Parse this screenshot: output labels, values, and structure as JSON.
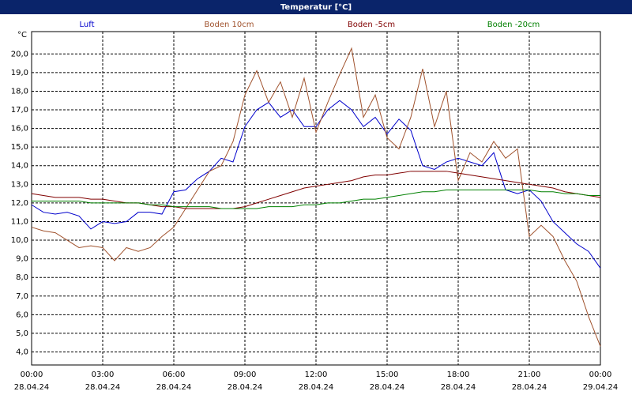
{
  "chart_data": {
    "type": "line",
    "title": "Temperatur [°C]",
    "y_label": "°C",
    "x": [
      0,
      0.5,
      1,
      1.5,
      2,
      2.5,
      3,
      3.5,
      4,
      4.5,
      5,
      5.5,
      6,
      6.5,
      7,
      7.5,
      8,
      8.5,
      9,
      9.5,
      10,
      10.5,
      11,
      11.5,
      12,
      12.5,
      13,
      13.5,
      14,
      14.5,
      15,
      15.5,
      16,
      16.5,
      17,
      17.5,
      18,
      18.5,
      19,
      19.5,
      20,
      20.5,
      21,
      21.5,
      22,
      22.5,
      23,
      23.5,
      24
    ],
    "series": [
      {
        "name": "Luft",
        "color": "#0000cc",
        "values": [
          11.9,
          11.5,
          11.4,
          11.5,
          11.3,
          10.6,
          11.0,
          10.9,
          11.0,
          11.5,
          11.5,
          11.4,
          12.6,
          12.7,
          13.3,
          13.7,
          14.4,
          14.2,
          16.1,
          17.0,
          17.4,
          16.6,
          17.0,
          16.1,
          16.1,
          17.0,
          17.5,
          17.0,
          16.1,
          16.6,
          15.7,
          16.5,
          15.9,
          14.0,
          13.8,
          14.2,
          14.4,
          14.2,
          14.0,
          14.7,
          12.7,
          12.5,
          12.7,
          12.1,
          11.0,
          10.4,
          9.8,
          9.4,
          8.5
        ]
      },
      {
        "name": "Boden 10cm",
        "color": "#a0522d",
        "values": [
          10.7,
          10.5,
          10.4,
          10.0,
          9.6,
          9.7,
          9.6,
          8.9,
          9.6,
          9.4,
          9.6,
          10.2,
          10.7,
          11.7,
          12.7,
          13.7,
          14.0,
          15.3,
          17.8,
          19.1,
          17.4,
          18.5,
          16.6,
          18.7,
          15.8,
          17.4,
          18.9,
          20.3,
          16.6,
          17.8,
          15.5,
          14.9,
          16.6,
          19.2,
          16.1,
          18.0,
          13.2,
          14.7,
          14.2,
          15.3,
          14.4,
          14.9,
          10.2,
          10.8,
          10.2,
          8.9,
          7.8,
          5.9,
          4.3
        ]
      },
      {
        "name": "Boden -5cm",
        "color": "#800000",
        "values": [
          12.5,
          12.4,
          12.3,
          12.3,
          12.3,
          12.2,
          12.2,
          12.1,
          12.0,
          12.0,
          11.9,
          11.8,
          11.8,
          11.7,
          11.7,
          11.7,
          11.7,
          11.7,
          11.8,
          12.0,
          12.2,
          12.4,
          12.6,
          12.8,
          12.9,
          13.0,
          13.1,
          13.2,
          13.4,
          13.5,
          13.5,
          13.6,
          13.7,
          13.7,
          13.7,
          13.7,
          13.6,
          13.5,
          13.4,
          13.3,
          13.2,
          13.1,
          13.0,
          12.9,
          12.8,
          12.6,
          12.5,
          12.4,
          12.3
        ]
      },
      {
        "name": "Boden -20cm",
        "color": "#008000",
        "values": [
          12.1,
          12.1,
          12.1,
          12.1,
          12.1,
          12.0,
          12.0,
          12.0,
          12.0,
          12.0,
          11.9,
          11.9,
          11.8,
          11.8,
          11.8,
          11.8,
          11.7,
          11.7,
          11.7,
          11.7,
          11.8,
          11.8,
          11.8,
          11.9,
          11.9,
          12.0,
          12.0,
          12.1,
          12.2,
          12.2,
          12.3,
          12.4,
          12.5,
          12.6,
          12.6,
          12.7,
          12.7,
          12.7,
          12.7,
          12.7,
          12.7,
          12.7,
          12.7,
          12.6,
          12.6,
          12.5,
          12.5,
          12.4,
          12.4
        ]
      }
    ],
    "xlim": [
      0,
      24
    ],
    "ylim": [
      3.3,
      21.2
    ],
    "xticks": [
      {
        "value": 0,
        "label": "00:00",
        "date": "28.04.24"
      },
      {
        "value": 3,
        "label": "03:00",
        "date": "28.04.24"
      },
      {
        "value": 6,
        "label": "06:00",
        "date": "28.04.24"
      },
      {
        "value": 9,
        "label": "09:00",
        "date": "28.04.24"
      },
      {
        "value": 12,
        "label": "12:00",
        "date": "28.04.24"
      },
      {
        "value": 15,
        "label": "15:00",
        "date": "28.04.24"
      },
      {
        "value": 18,
        "label": "18:00",
        "date": "28.04.24"
      },
      {
        "value": 21,
        "label": "21:00",
        "date": "28.04.24"
      },
      {
        "value": 24,
        "label": "00:00",
        "date": "29.04.24"
      }
    ],
    "yticks": [
      {
        "value": 4,
        "label": "4,0"
      },
      {
        "value": 5,
        "label": "5,0"
      },
      {
        "value": 6,
        "label": "6,0"
      },
      {
        "value": 7,
        "label": "7,0"
      },
      {
        "value": 8,
        "label": "8,0"
      },
      {
        "value": 9,
        "label": "9,0"
      },
      {
        "value": 10,
        "label": "10,0"
      },
      {
        "value": 11,
        "label": "11,0"
      },
      {
        "value": 12,
        "label": "12,0"
      },
      {
        "value": 13,
        "label": "13,0"
      },
      {
        "value": 14,
        "label": "14,0"
      },
      {
        "value": 15,
        "label": "15,0"
      },
      {
        "value": 16,
        "label": "16,0"
      },
      {
        "value": 17,
        "label": "17,0"
      },
      {
        "value": 18,
        "label": "18,0"
      },
      {
        "value": 19,
        "label": "19,0"
      },
      {
        "value": 20,
        "label": "20,0"
      }
    ],
    "grid": true,
    "legend": "top"
  }
}
